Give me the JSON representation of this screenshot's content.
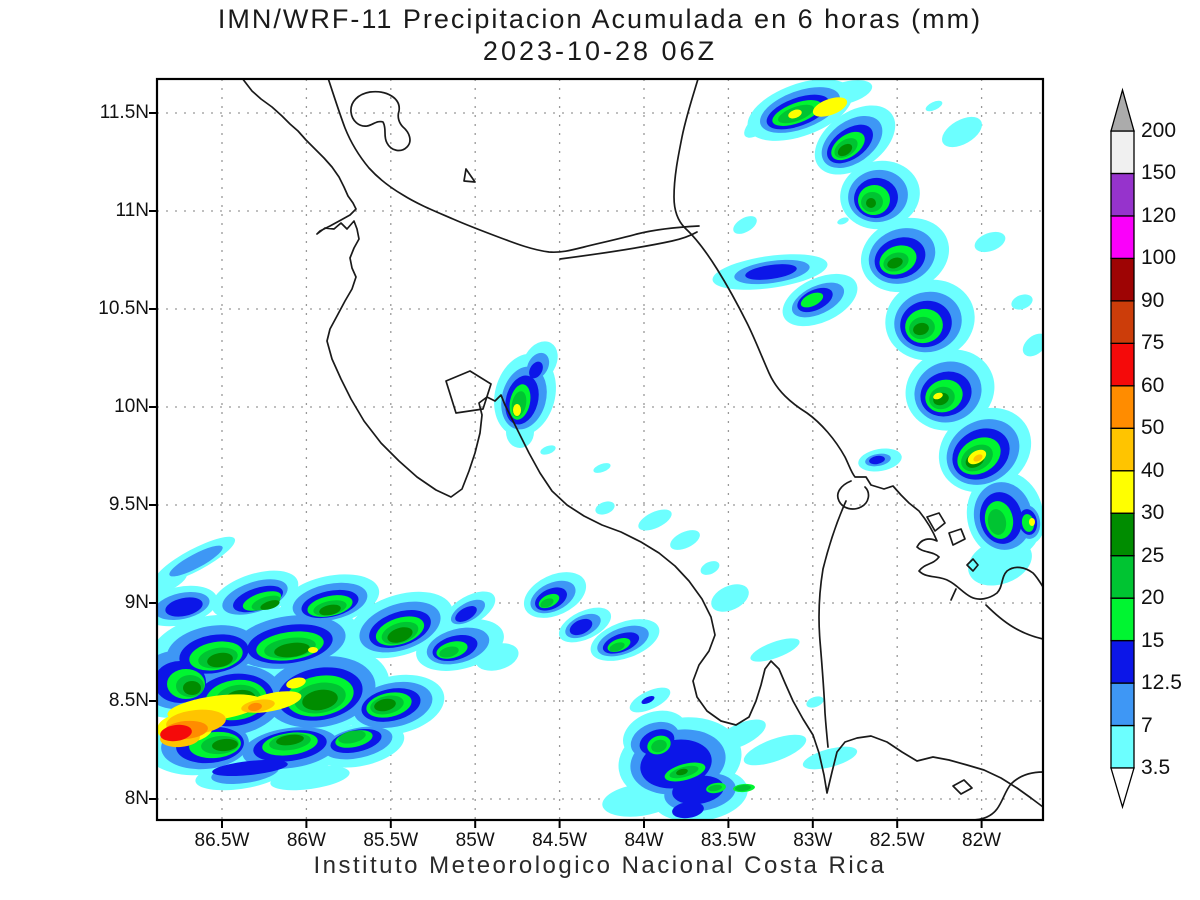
{
  "title": {
    "line1": "IMN/WRF-11 Precipitacion Acumulada en 6 horas (mm)",
    "line2": "2023-10-28 06Z"
  },
  "caption": "Instituto Meteorologico Nacional Costa Rica",
  "axes": {
    "lat_ticks": [
      {
        "label": "11.5N",
        "value": 11.5
      },
      {
        "label": "11N",
        "value": 11.0
      },
      {
        "label": "10.5N",
        "value": 10.5
      },
      {
        "label": "10N",
        "value": 10.0
      },
      {
        "label": "9.5N",
        "value": 9.5
      },
      {
        "label": "9N",
        "value": 9.0
      },
      {
        "label": "8.5N",
        "value": 8.5
      },
      {
        "label": "8N",
        "value": 8.0
      }
    ],
    "lon_ticks": [
      {
        "label": "86.5W",
        "value": 86.5
      },
      {
        "label": "86W",
        "value": 86.0
      },
      {
        "label": "85.5W",
        "value": 85.5
      },
      {
        "label": "85W",
        "value": 85.0
      },
      {
        "label": "84.5W",
        "value": 84.5
      },
      {
        "label": "84W",
        "value": 84.0
      },
      {
        "label": "83.5W",
        "value": 83.5
      },
      {
        "label": "83W",
        "value": 83.0
      },
      {
        "label": "82.5W",
        "value": 82.5
      },
      {
        "label": "82W",
        "value": 82.0
      }
    ]
  },
  "colorbar": {
    "levels": [
      3.5,
      7,
      12.5,
      15,
      20,
      25,
      30,
      40,
      50,
      60,
      75,
      90,
      100,
      120,
      150,
      200
    ],
    "colors": [
      "#6CFFFF",
      "#3E97F5",
      "#0C16E8",
      "#00F531",
      "#00C432",
      "#008C00",
      "#FFFF00",
      "#FFC400",
      "#FF8C00",
      "#F50A0A",
      "#CC3D0A",
      "#9E0404",
      "#FA00FA",
      "#9633CC",
      "#F0F0F0"
    ],
    "above_color": "#ABABAB",
    "below_color": "#FFFFFF"
  },
  "chart_data": {
    "type": "filled_contour_map",
    "title": "IMN/WRF-11 Precipitacion Acumulada en 6 horas (mm)",
    "valid_time": "2023-10-28 06Z",
    "units": "mm",
    "lon_range_w": [
      86.9,
      81.65
    ],
    "lat_range_n": [
      7.9,
      11.67
    ],
    "grid": "dotted graticule every 0.5 degree",
    "contour_levels_mm": [
      3.5,
      7,
      12.5,
      15,
      20,
      25,
      30,
      40,
      50,
      60,
      75,
      90,
      100,
      120,
      150,
      200
    ],
    "precipitation_regions": [
      {
        "area": "Pacific offshore storm southwest of Costa Rica",
        "center_lon_w": 86.6,
        "center_lat_n": 8.45,
        "max_mm": 75
      },
      {
        "area": "Secondary Pacific core",
        "center_lon_w": 86.15,
        "center_lat_n": 8.5,
        "max_mm": 60
      },
      {
        "area": "Broad green cell west of Nicoya",
        "center_lon_w": 85.5,
        "center_lat_n": 8.7,
        "max_mm": 30
      },
      {
        "area": "Caribbean offshore band (NE diagonal)",
        "center_lon_w": 82.6,
        "center_lat_n": 10.9,
        "max_mm": 40
      },
      {
        "area": "Northern Caribbean cell",
        "center_lon_w": 82.9,
        "center_lat_n": 11.5,
        "max_mm": 40
      },
      {
        "area": "Caribbean cell near 82.5W 10.3N",
        "center_lon_w": 82.5,
        "center_lat_n": 10.3,
        "max_mm": 50
      },
      {
        "area": "Central cordillera cell",
        "center_lon_w": 84.72,
        "center_lat_n": 10.0,
        "max_mm": 40
      },
      {
        "area": "Golfo Dulce / Osa offshore cells",
        "center_lon_w": 83.7,
        "center_lat_n": 8.2,
        "max_mm": 25
      },
      {
        "area": "South Caribbean coastal cell",
        "center_lon_w": 83.6,
        "center_lat_n": 9.0,
        "max_mm": 20
      }
    ]
  }
}
